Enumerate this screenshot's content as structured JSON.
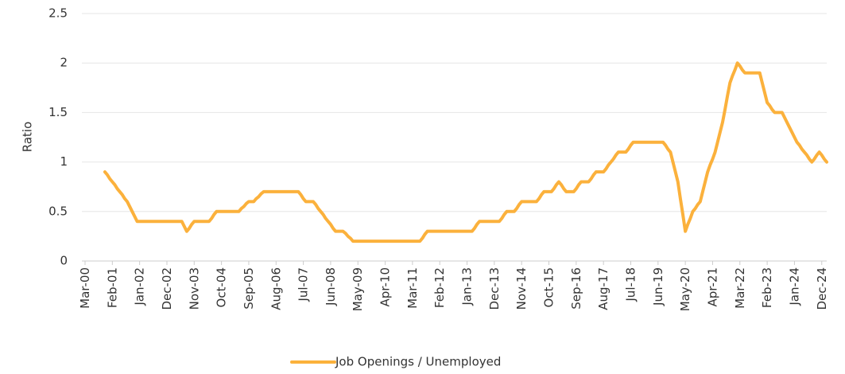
{
  "chart_data": {
    "type": "line",
    "y_label": "Ratio",
    "categories": [
      "Mar-00",
      null,
      null,
      null,
      null,
      null,
      null,
      null,
      null,
      null,
      null,
      "Feb-01",
      null,
      null,
      null,
      null,
      null,
      null,
      null,
      null,
      null,
      null,
      "Jan-02",
      null,
      null,
      null,
      null,
      null,
      null,
      null,
      null,
      null,
      null,
      "Dec-02",
      null,
      null,
      null,
      null,
      null,
      null,
      null,
      null,
      null,
      null,
      "Nov-03",
      null,
      null,
      null,
      null,
      null,
      null,
      null,
      null,
      null,
      null,
      "Oct-04",
      null,
      null,
      null,
      null,
      null,
      null,
      null,
      null,
      null,
      null,
      "Sep-05",
      null,
      null,
      null,
      null,
      null,
      null,
      null,
      null,
      null,
      null,
      "Aug-06",
      null,
      null,
      null,
      null,
      null,
      null,
      null,
      null,
      null,
      null,
      "Jul-07",
      null,
      null,
      null,
      null,
      null,
      null,
      null,
      null,
      null,
      null,
      "Jun-08",
      null,
      null,
      null,
      null,
      null,
      null,
      null,
      null,
      null,
      null,
      "May-09",
      null,
      null,
      null,
      null,
      null,
      null,
      null,
      null,
      null,
      null,
      "Apr-10",
      null,
      null,
      null,
      null,
      null,
      null,
      null,
      null,
      null,
      null,
      "Mar-11",
      null,
      null,
      null,
      null,
      null,
      null,
      null,
      null,
      null,
      null,
      "Feb-12",
      null,
      null,
      null,
      null,
      null,
      null,
      null,
      null,
      null,
      null,
      "Jan-13",
      null,
      null,
      null,
      null,
      null,
      null,
      null,
      null,
      null,
      null,
      "Dec-13",
      null,
      null,
      null,
      null,
      null,
      null,
      null,
      null,
      null,
      null,
      "Nov-14",
      null,
      null,
      null,
      null,
      null,
      null,
      null,
      null,
      null,
      null,
      "Oct-15",
      null,
      null,
      null,
      null,
      null,
      null,
      null,
      null,
      null,
      null,
      "Sep-16",
      null,
      null,
      null,
      null,
      null,
      null,
      null,
      null,
      null,
      null,
      "Aug-17",
      null,
      null,
      null,
      null,
      null,
      null,
      null,
      null,
      null,
      null,
      "Jul-18",
      null,
      null,
      null,
      null,
      null,
      null,
      null,
      null,
      null,
      null,
      "Jun-19",
      null,
      null,
      null,
      null,
      null,
      null,
      null,
      null,
      null,
      null,
      "May-20",
      null,
      null,
      null,
      null,
      null,
      null,
      null,
      null,
      null,
      null,
      "Apr-21",
      null,
      null,
      null,
      null,
      null,
      null,
      null,
      null,
      null,
      null,
      "Mar-22",
      null,
      null,
      null,
      null,
      null,
      null,
      null,
      null,
      null,
      null,
      "Feb-23",
      null,
      null,
      null,
      null,
      null,
      null,
      null,
      null,
      null,
      null,
      "Jan-24",
      null,
      null,
      null,
      null,
      null,
      null,
      null,
      null,
      null,
      null,
      "Dec-24",
      null,
      null
    ],
    "series": [
      {
        "name": "Job Openings / Unemployed",
        "color": "#fbb13c",
        "values": [
          null,
          null,
          null,
          null,
          null,
          null,
          null,
          null,
          0.9,
          0.87,
          0.83,
          0.8,
          0.77,
          0.73,
          0.7,
          0.67,
          0.63,
          0.6,
          0.55,
          0.5,
          0.45,
          0.4,
          0.4,
          0.4,
          0.4,
          0.4,
          0.4,
          0.4,
          0.4,
          0.4,
          0.4,
          0.4,
          0.4,
          0.4,
          0.4,
          0.4,
          0.4,
          0.4,
          0.4,
          0.4,
          0.35,
          0.3,
          0.33,
          0.37,
          0.4,
          0.4,
          0.4,
          0.4,
          0.4,
          0.4,
          0.4,
          0.43,
          0.47,
          0.5,
          0.5,
          0.5,
          0.5,
          0.5,
          0.5,
          0.5,
          0.5,
          0.5,
          0.5,
          0.53,
          0.55,
          0.58,
          0.6,
          0.6,
          0.6,
          0.63,
          0.65,
          0.68,
          0.7,
          0.7,
          0.7,
          0.7,
          0.7,
          0.7,
          0.7,
          0.7,
          0.7,
          0.7,
          0.7,
          0.7,
          0.7,
          0.7,
          0.7,
          0.67,
          0.63,
          0.6,
          0.6,
          0.6,
          0.6,
          0.57,
          0.53,
          0.5,
          0.47,
          0.43,
          0.4,
          0.37,
          0.33,
          0.3,
          0.3,
          0.3,
          0.3,
          0.28,
          0.25,
          0.23,
          0.2,
          0.2,
          0.2,
          0.2,
          0.2,
          0.2,
          0.2,
          0.2,
          0.2,
          0.2,
          0.2,
          0.2,
          0.2,
          0.2,
          0.2,
          0.2,
          0.2,
          0.2,
          0.2,
          0.2,
          0.2,
          0.2,
          0.2,
          0.2,
          0.2,
          0.2,
          0.2,
          0.2,
          0.23,
          0.27,
          0.3,
          0.3,
          0.3,
          0.3,
          0.3,
          0.3,
          0.3,
          0.3,
          0.3,
          0.3,
          0.3,
          0.3,
          0.3,
          0.3,
          0.3,
          0.3,
          0.3,
          0.3,
          0.3,
          0.33,
          0.37,
          0.4,
          0.4,
          0.4,
          0.4,
          0.4,
          0.4,
          0.4,
          0.4,
          0.4,
          0.43,
          0.47,
          0.5,
          0.5,
          0.5,
          0.5,
          0.53,
          0.57,
          0.6,
          0.6,
          0.6,
          0.6,
          0.6,
          0.6,
          0.6,
          0.63,
          0.67,
          0.7,
          0.7,
          0.7,
          0.7,
          0.73,
          0.77,
          0.8,
          0.77,
          0.73,
          0.7,
          0.7,
          0.7,
          0.7,
          0.73,
          0.77,
          0.8,
          0.8,
          0.8,
          0.8,
          0.83,
          0.87,
          0.9,
          0.9,
          0.9,
          0.9,
          0.93,
          0.97,
          1,
          1.03,
          1.07,
          1.1,
          1.1,
          1.1,
          1.1,
          1.13,
          1.17,
          1.2,
          1.2,
          1.2,
          1.2,
          1.2,
          1.2,
          1.2,
          1.2,
          1.2,
          1.2,
          1.2,
          1.2,
          1.2,
          1.17,
          1.13,
          1.1,
          1,
          0.9,
          0.8,
          0.63,
          0.47,
          0.3,
          0.37,
          0.43,
          0.5,
          0.53,
          0.57,
          0.6,
          0.7,
          0.8,
          0.9,
          0.97,
          1.03,
          1.1,
          1.2,
          1.3,
          1.4,
          1.53,
          1.67,
          1.8,
          1.87,
          1.93,
          2,
          1.97,
          1.93,
          1.9,
          1.9,
          1.9,
          1.9,
          1.9,
          1.9,
          1.9,
          1.8,
          1.7,
          1.6,
          1.57,
          1.53,
          1.5,
          1.5,
          1.5,
          1.5,
          1.45,
          1.4,
          1.35,
          1.3,
          1.25,
          1.2,
          1.17,
          1.13,
          1.1,
          1.07,
          1.03,
          1,
          1.03,
          1.07,
          1.1,
          1.07,
          1.03,
          1
        ]
      }
    ],
    "ylim": [
      0,
      2.5
    ],
    "yticks": [
      0,
      0.5,
      1,
      1.5,
      2,
      2.5
    ],
    "grid": true,
    "legend": "bottom"
  }
}
